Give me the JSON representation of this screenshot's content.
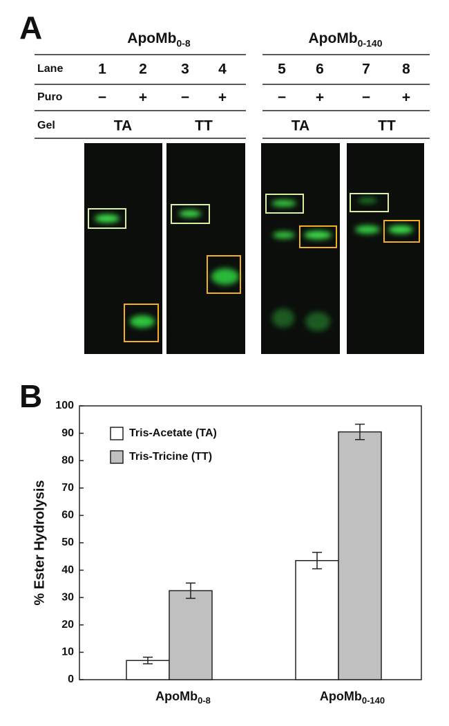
{
  "panel_a": {
    "label": "A",
    "groups": [
      {
        "name": "ApoMb",
        "subscript": "0-8"
      },
      {
        "name": "ApoMb",
        "subscript": "0-140"
      }
    ],
    "row_labels": [
      "Lane",
      "Puro",
      "Gel"
    ],
    "lanes": [
      "1",
      "2",
      "3",
      "4",
      "5",
      "6",
      "7",
      "8"
    ],
    "puro": [
      "−",
      "+",
      "−",
      "+",
      "−",
      "+",
      "−",
      "+"
    ],
    "gels": [
      "TA",
      "TT",
      "TA",
      "TT"
    ]
  },
  "chart_data": {
    "type": "bar",
    "label": "B",
    "y_label": "% Ester Hydrolysis",
    "categories": [
      "ApoMb",
      "ApoMb"
    ],
    "category_subscripts": [
      "0-8",
      "0-140"
    ],
    "series": [
      {
        "name": "Tris-Acetate (TA)",
        "color": "#ffffff",
        "values": [
          7,
          43.5
        ],
        "errors": [
          1.2,
          3
        ]
      },
      {
        "name": "Tris-Tricine (TT)",
        "color": "#c0c0c0",
        "values": [
          32.5,
          90.5
        ],
        "errors": [
          2.8,
          2.8
        ]
      }
    ],
    "ylim": [
      0,
      100
    ],
    "yticks": [
      0,
      10,
      20,
      30,
      40,
      50,
      60,
      70,
      80,
      90,
      100
    ]
  }
}
